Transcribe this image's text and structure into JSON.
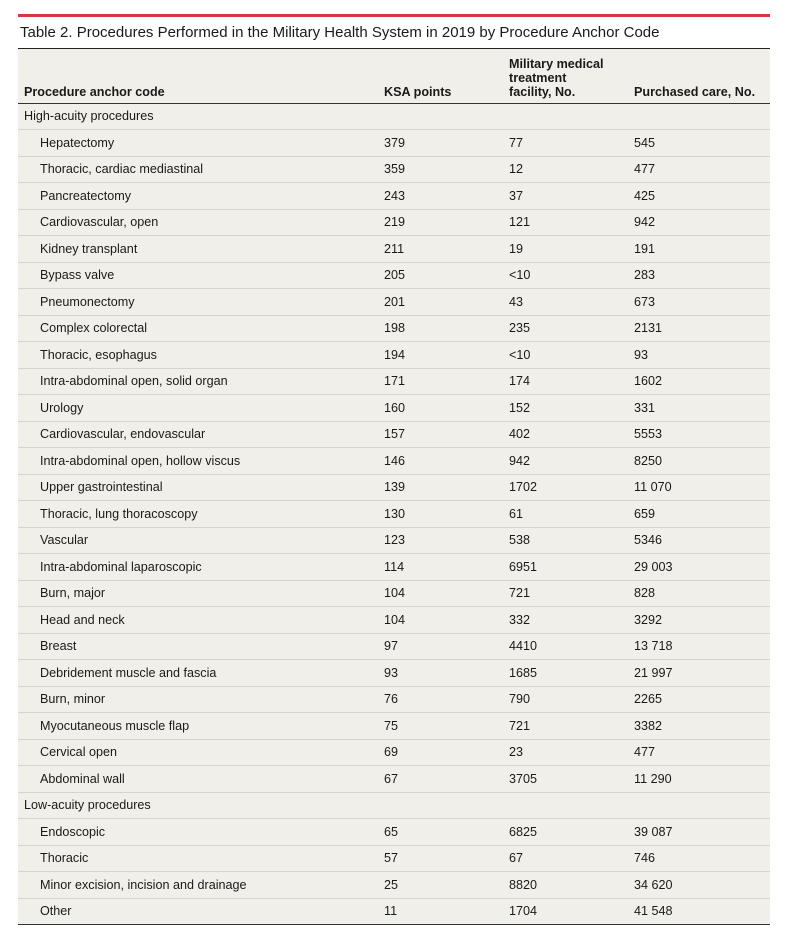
{
  "title": "Table 2. Procedures Performed in the Military Health System in 2019 by Procedure Anchor Code",
  "headers": [
    "Procedure anchor code",
    "KSA points",
    "Military medical treatment facility, No.",
    "Purchased care, No."
  ],
  "header_lines": {
    "col1": "Procedure anchor code",
    "col2": "KSA points",
    "col3_line1": "Military medical",
    "col3_line2": "treatment",
    "col3_line3": "facility, No.",
    "col4": "Purchased care, No."
  },
  "sections": [
    {
      "label": "High-acuity procedures",
      "rows": [
        [
          "Hepatectomy",
          "379",
          "77",
          "545"
        ],
        [
          "Thoracic, cardiac mediastinal",
          "359",
          "12",
          "477"
        ],
        [
          "Pancreatectomy",
          "243",
          "37",
          "425"
        ],
        [
          "Cardiovascular, open",
          "219",
          "121",
          "942"
        ],
        [
          "Kidney transplant",
          "211",
          "19",
          "191"
        ],
        [
          "Bypass valve",
          "205",
          "<10",
          "283"
        ],
        [
          "Pneumonectomy",
          "201",
          "43",
          "673"
        ],
        [
          "Complex colorectal",
          "198",
          "235",
          "2131"
        ],
        [
          "Thoracic, esophagus",
          "194",
          "<10",
          "93"
        ],
        [
          "Intra-abdominal open, solid organ",
          "171",
          "174",
          "1602"
        ],
        [
          "Urology",
          "160",
          "152",
          "331"
        ],
        [
          "Cardiovascular, endovascular",
          "157",
          "402",
          "5553"
        ],
        [
          "Intra-abdominal open, hollow viscus",
          "146",
          "942",
          "8250"
        ],
        [
          "Upper gastrointestinal",
          "139",
          "1702",
          "11 070"
        ],
        [
          "Thoracic, lung thoracoscopy",
          "130",
          "61",
          "659"
        ],
        [
          "Vascular",
          "123",
          "538",
          "5346"
        ],
        [
          "Intra-abdominal laparoscopic",
          "114",
          "6951",
          "29 003"
        ],
        [
          "Burn, major",
          "104",
          "721",
          "828"
        ],
        [
          "Head and neck",
          "104",
          "332",
          "3292"
        ],
        [
          "Breast",
          "97",
          "4410",
          "13 718"
        ],
        [
          "Debridement muscle and fascia",
          "93",
          "1685",
          "21 997"
        ],
        [
          "Burn, minor",
          "76",
          "790",
          "2265"
        ],
        [
          "Myocutaneous muscle flap",
          "75",
          "721",
          "3382"
        ],
        [
          "Cervical open",
          "69",
          "23",
          "477"
        ],
        [
          "Abdominal wall",
          "67",
          "3705",
          "11 290"
        ]
      ]
    },
    {
      "label": "Low-acuity procedures",
      "rows": [
        [
          "Endoscopic",
          "65",
          "6825",
          "39 087"
        ],
        [
          "Thoracic",
          "57",
          "67",
          "746"
        ],
        [
          "Minor excision, incision and drainage",
          "25",
          "8820",
          "34 620"
        ],
        [
          "Other",
          "11",
          "1704",
          "41 548"
        ]
      ]
    }
  ],
  "colors": {
    "accent_rule": "#d9363e",
    "table_bg": "#f1efe9"
  }
}
